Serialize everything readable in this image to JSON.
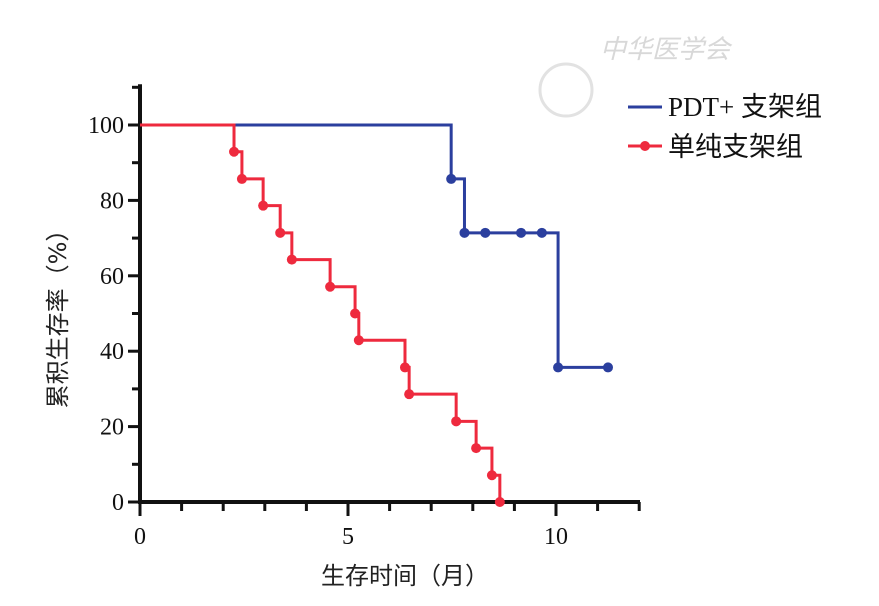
{
  "watermark": {
    "text": "中华医学会"
  },
  "chart_data": {
    "type": "line",
    "subtype": "kaplan-meier-step",
    "title": "",
    "xlabel": "生存时间（月）",
    "ylabel": "累积生存率（%）",
    "xlim": [
      0,
      12
    ],
    "ylim": [
      0,
      110
    ],
    "xticks": [
      0,
      5,
      10
    ],
    "xtick_labels": [
      "0",
      "5",
      "10"
    ],
    "yticks": [
      0,
      20,
      40,
      60,
      80,
      100
    ],
    "ytick_labels": [
      "0",
      "20",
      "40",
      "60",
      "80",
      "100"
    ],
    "legend_position": "top-right",
    "series": [
      {
        "name": "PDT+ 支架组",
        "color": "#2b3f9e",
        "steps": [
          [
            0,
            100
          ],
          [
            7.48,
            85.7
          ],
          [
            7.8,
            71.4
          ],
          [
            10.05,
            35.7
          ],
          [
            11.25,
            35.7
          ]
        ],
        "markers": [
          [
            7.48,
            85.7
          ],
          [
            7.8,
            71.4
          ],
          [
            8.3,
            71.4
          ],
          [
            9.16,
            71.4
          ],
          [
            9.66,
            71.4
          ],
          [
            10.05,
            35.7
          ],
          [
            11.25,
            35.7
          ]
        ]
      },
      {
        "name": "单纯支架组",
        "color": "#ee2a3e",
        "steps": [
          [
            0,
            100
          ],
          [
            2.26,
            92.9
          ],
          [
            2.45,
            85.7
          ],
          [
            2.96,
            78.6
          ],
          [
            3.37,
            71.4
          ],
          [
            3.65,
            64.3
          ],
          [
            4.57,
            57.1
          ],
          [
            5.17,
            50.0
          ],
          [
            5.26,
            42.9
          ],
          [
            6.37,
            35.7
          ],
          [
            6.47,
            28.6
          ],
          [
            7.6,
            21.4
          ],
          [
            8.08,
            14.3
          ],
          [
            8.46,
            7.1
          ],
          [
            8.65,
            0
          ]
        ],
        "markers": [
          [
            2.26,
            92.9
          ],
          [
            2.45,
            85.7
          ],
          [
            2.96,
            78.6
          ],
          [
            3.37,
            71.4
          ],
          [
            3.65,
            64.3
          ],
          [
            4.57,
            57.1
          ],
          [
            5.17,
            50.0
          ],
          [
            5.26,
            42.9
          ],
          [
            6.37,
            35.7
          ],
          [
            6.47,
            28.6
          ],
          [
            7.6,
            21.4
          ],
          [
            8.08,
            14.3
          ],
          [
            8.46,
            7.1
          ],
          [
            8.65,
            0
          ]
        ]
      }
    ]
  }
}
